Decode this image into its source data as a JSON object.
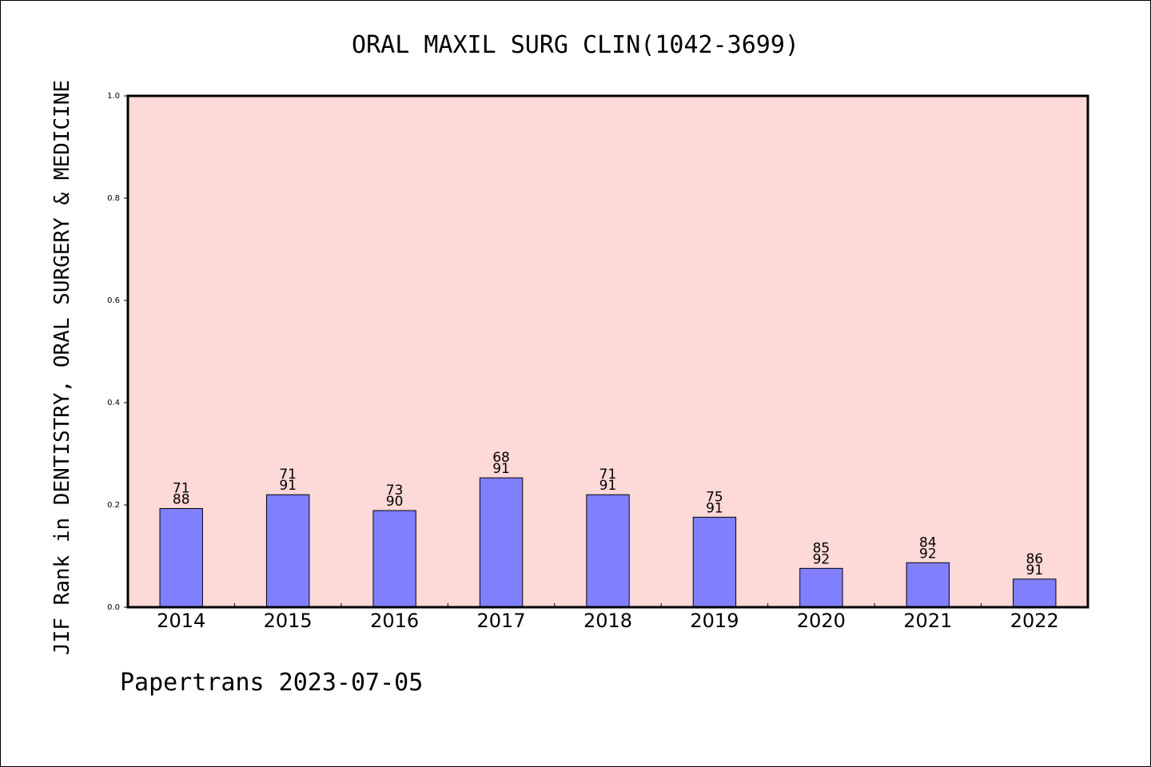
{
  "chart_data": {
    "type": "bar",
    "title": "ORAL MAXIL SURG CLIN(1042-3699)",
    "ylabel": "JIF Rank in DENTISTRY, ORAL SURGERY & MEDICINE",
    "xlabel": "",
    "ylim": [
      0,
      1.0
    ],
    "yticks": [
      "0.0",
      "0.2",
      "0.4",
      "0.6",
      "0.8",
      "1.0"
    ],
    "categories": [
      "2014",
      "2015",
      "2016",
      "2017",
      "2018",
      "2019",
      "2020",
      "2021",
      "2022"
    ],
    "ranks": [
      "71",
      "71",
      "73",
      "68",
      "71",
      "75",
      "85",
      "84",
      "86"
    ],
    "totals": [
      "88",
      "91",
      "90",
      "91",
      "91",
      "91",
      "92",
      "92",
      "91"
    ],
    "values": [
      0.193,
      0.22,
      0.189,
      0.253,
      0.22,
      0.176,
      0.076,
      0.087,
      0.055
    ],
    "grid": false,
    "colors": {
      "plot_background": "#fdd9d7",
      "bar_fill": "#8080ff",
      "bar_stroke": "#000000"
    }
  },
  "footer": {
    "text": "Papertrans 2023-07-05"
  }
}
